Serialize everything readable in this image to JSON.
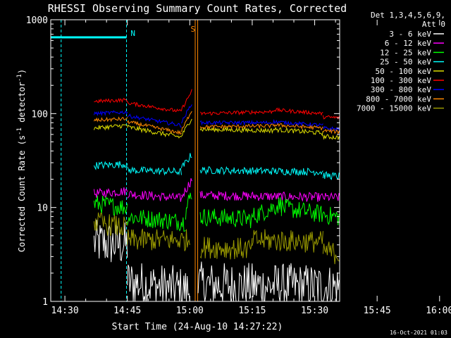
{
  "chart_data": {
    "type": "line",
    "title": "RHESSI Observing Summary Count Rates, Corrected",
    "xlabel": "Start Time (24-Aug-10 14:27:22)",
    "ylabel_main": "Corrected Count Rate (s",
    "ylabel_sup1": "-1",
    "ylabel_mid": " detector",
    "ylabel_sup2": "-1",
    "ylabel_end": ")",
    "y_scale": "log",
    "ylim": [
      1,
      1000
    ],
    "xlim_minutes": [
      -3.4,
      66.0
    ],
    "x_ticks": [
      {
        "label": "14:30",
        "min": 0
      },
      {
        "label": "14:45",
        "min": 15
      },
      {
        "label": "15:00",
        "min": 30
      },
      {
        "label": "15:15",
        "min": 45
      },
      {
        "label": "15:30",
        "min": 60
      },
      {
        "label": "15:45",
        "min": 75
      },
      {
        "label": "16:00",
        "min": 90
      }
    ],
    "y_tick_labels": [
      {
        "label": "1",
        "value": 1
      },
      {
        "label": "10",
        "value": 10
      },
      {
        "label": "100",
        "value": 100
      },
      {
        "label": "1000",
        "value": 1000
      }
    ],
    "legend": {
      "placement": "right",
      "header1": "Det 1,3,4,5,6,9,",
      "header2": "Att 0",
      "entries": [
        {
          "label": "3 - 6 keV",
          "color": "#ffffff"
        },
        {
          "label": "6 - 12 keV",
          "color": "#ff00ff"
        },
        {
          "label": "12 - 25 keV",
          "color": "#00ff00"
        },
        {
          "label": "25 - 50 keV",
          "color": "#00ffff"
        },
        {
          "label": "50 - 100 keV",
          "color": "#dddd00"
        },
        {
          "label": "100 - 300 keV",
          "color": "#ff0000"
        },
        {
          "label": "300 - 800 keV",
          "color": "#0000ff"
        },
        {
          "label": "800 - 7000 keV",
          "color": "#ff8800"
        },
        {
          "label": "7000 - 15000 keV",
          "color": "#999900"
        }
      ]
    },
    "markers": [
      {
        "label": "N",
        "color": "#00ffff"
      },
      {
        "label": "S",
        "color": "#ff8800"
      }
    ],
    "series": [
      {
        "name": "3 - 6 keV",
        "color": "#ffffff",
        "noise": 0.25,
        "segments": [
          {
            "x": [
              7,
              15
            ],
            "y": [
              4.2,
              4.0
            ]
          },
          {
            "x": [
              15,
              30
            ],
            "y": [
              1.6,
              1.3
            ]
          },
          {
            "x": [
              32,
              77
            ],
            "y": [
              1.5,
              1.4
            ]
          }
        ]
      },
      {
        "name": "6 - 12 keV",
        "color": "#ff00ff",
        "noise": 0.05,
        "segments": [
          {
            "x": [
              7,
              15
            ],
            "y": [
              14,
              15
            ]
          },
          {
            "x": [
              15,
              28
            ],
            "y": [
              14,
              12.5
            ]
          },
          {
            "x": [
              28,
              30.5
            ],
            "y": [
              13,
              20
            ]
          },
          {
            "x": [
              32.5,
              77
            ],
            "y": [
              13.5,
              12.5
            ]
          }
        ]
      },
      {
        "name": "12 - 25 keV",
        "color": "#00ff00",
        "noise": 0.1,
        "segments": [
          {
            "x": [
              7,
              15
            ],
            "y": [
              11,
              10
            ]
          },
          {
            "x": [
              15,
              29
            ],
            "y": [
              8,
              7
            ]
          },
          {
            "x": [
              29,
              30.5
            ],
            "y": [
              9,
              15
            ]
          },
          {
            "x": [
              32.5,
              45
            ],
            "y": [
              8,
              7.5
            ]
          },
          {
            "x": [
              45,
              52
            ],
            "y": [
              8,
              11
            ]
          },
          {
            "x": [
              52,
              77
            ],
            "y": [
              10,
              6.5
            ]
          }
        ]
      },
      {
        "name": "25 - 50 keV",
        "color": "#00ffff",
        "noise": 0.04,
        "segments": [
          {
            "x": [
              7,
              15
            ],
            "y": [
              28,
              29
            ]
          },
          {
            "x": [
              15,
              28
            ],
            "y": [
              25,
              24
            ]
          },
          {
            "x": [
              28,
              30.5
            ],
            "y": [
              26,
              37
            ]
          },
          {
            "x": [
              32.5,
              62
            ],
            "y": [
              25,
              24
            ]
          },
          {
            "x": [
              62,
              77
            ],
            "y": [
              22,
              20
            ]
          }
        ]
      },
      {
        "name": "50 - 100 keV",
        "color": "#dddd00",
        "noise": 0.025,
        "segments": [
          {
            "x": [
              7,
              15
            ],
            "y": [
              70,
              75
            ]
          },
          {
            "x": [
              15,
              28
            ],
            "y": [
              72,
              56
            ]
          },
          {
            "x": [
              28,
              30.5
            ],
            "y": [
              58,
              90
            ]
          },
          {
            "x": [
              32.5,
              50
            ],
            "y": [
              68,
              66
            ]
          },
          {
            "x": [
              50,
              62
            ],
            "y": [
              68,
              62
            ]
          },
          {
            "x": [
              62,
              77
            ],
            "y": [
              57,
              52
            ]
          }
        ]
      },
      {
        "name": "100 - 300 keV",
        "color": "#ff0000",
        "noise": 0.02,
        "segments": [
          {
            "x": [
              7,
              15
            ],
            "y": [
              135,
              140
            ]
          },
          {
            "x": [
              15,
              28
            ],
            "y": [
              130,
              105
            ]
          },
          {
            "x": [
              28,
              30.5
            ],
            "y": [
              110,
              175
            ]
          },
          {
            "x": [
              32.5,
              50
            ],
            "y": [
              100,
              105
            ]
          },
          {
            "x": [
              50,
              62
            ],
            "y": [
              110,
              100
            ]
          },
          {
            "x": [
              62,
              77
            ],
            "y": [
              92,
              86
            ]
          }
        ]
      },
      {
        "name": "300 - 800 keV",
        "color": "#0000ff",
        "noise": 0.02,
        "segments": [
          {
            "x": [
              7,
              15
            ],
            "y": [
              100,
              104
            ]
          },
          {
            "x": [
              15,
              28
            ],
            "y": [
              95,
              75
            ]
          },
          {
            "x": [
              28,
              30.5
            ],
            "y": [
              80,
              130
            ]
          },
          {
            "x": [
              32.5,
              50
            ],
            "y": [
              80,
              80
            ]
          },
          {
            "x": [
              50,
              62
            ],
            "y": [
              82,
              75
            ]
          },
          {
            "x": [
              62,
              77
            ],
            "y": [
              70,
              64
            ]
          }
        ]
      },
      {
        "name": "800 - 7000 keV",
        "color": "#ff8800",
        "noise": 0.02,
        "segments": [
          {
            "x": [
              7,
              15
            ],
            "y": [
              85,
              88
            ]
          },
          {
            "x": [
              15,
              28
            ],
            "y": [
              82,
              62
            ]
          },
          {
            "x": [
              28,
              30.5
            ],
            "y": [
              65,
              110
            ]
          },
          {
            "x": [
              32.5,
              50
            ],
            "y": [
              72,
              74
            ]
          },
          {
            "x": [
              50,
              62
            ],
            "y": [
              76,
              70
            ]
          },
          {
            "x": [
              62,
              77
            ],
            "y": [
              66,
              58
            ]
          }
        ]
      },
      {
        "name": "7000 - 15000 keV",
        "color": "#999900",
        "noise": 0.12,
        "segments": [
          {
            "x": [
              7,
              15
            ],
            "y": [
              7,
              6
            ]
          },
          {
            "x": [
              15,
              30
            ],
            "y": [
              4.5,
              4.5
            ]
          },
          {
            "x": [
              32.5,
              45
            ],
            "y": [
              3.8,
              3.6
            ]
          },
          {
            "x": [
              45,
              62
            ],
            "y": [
              4.5,
              4.3
            ]
          },
          {
            "x": [
              62,
              77
            ],
            "y": [
              3.5,
              2.4
            ]
          }
        ]
      }
    ]
  },
  "footer_timestamp": "16-Oct-2021 01:03"
}
